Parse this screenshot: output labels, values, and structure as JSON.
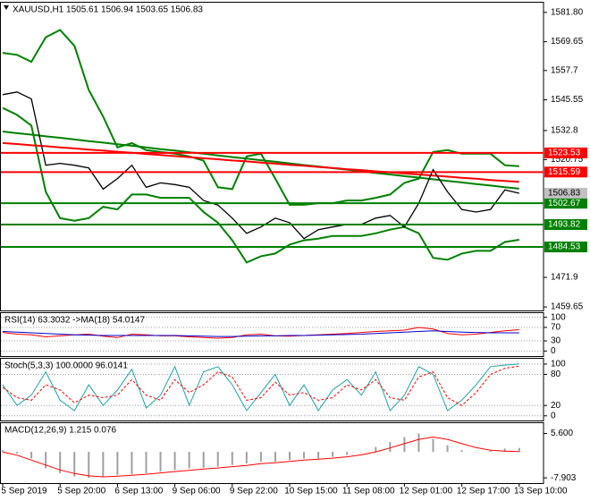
{
  "chart_data": [
    {
      "type": "line",
      "title": "XAUUSD,H1  1505.61 1506.94 1503.65 1506.83",
      "ylim": [
        1458.2,
        1586.2
      ],
      "yticks": [
        {
          "value": 1581.8,
          "label": "1581.80"
        },
        1569.65,
        1557.7,
        1545.55,
        1532.8,
        1520.75,
        1471.9,
        1459.65
      ],
      "grid": false,
      "levels": [
        {
          "value": 1523.53,
          "color": "#ff0000"
        },
        {
          "value": 1515.59,
          "color": "#ff0000"
        },
        {
          "value": 1502.67,
          "color": "#008000"
        },
        {
          "value": 1493.82,
          "color": "#008000"
        },
        {
          "value": 1484.53,
          "color": "#008000"
        }
      ],
      "last_price": 1506.83,
      "series": [
        {
          "color": "#008000",
          "width": 2,
          "values": [
            1565.0,
            1564.2,
            1561.3,
            1571.5,
            1574.5,
            1567.9,
            1549.6,
            1538.6,
            1525.8,
            1527.6,
            1524.7,
            1523.9,
            1523.2,
            1522.1,
            1520.3,
            1509.3,
            1508.5,
            1522.1,
            1523.2,
            1512.9,
            1502.0,
            1502.0,
            1502.7,
            1502.7,
            1503.8,
            1503.8,
            1504.9,
            1506.3,
            1511.1,
            1512.9,
            1523.9,
            1524.7,
            1523.2,
            1523.2,
            1523.2,
            1518.4,
            1518.0,
            null
          ]
        },
        {
          "color": "#008000",
          "width": 2,
          "values": [
            1542.2,
            1539.3,
            1534.9,
            1507.4,
            1496.5,
            1495.4,
            1496.5,
            1501.2,
            1500.1,
            1506.3,
            1506.3,
            1504.9,
            1504.9,
            1504.9,
            1499.0,
            1494.6,
            1487.3,
            1478.1,
            1480.7,
            1481.8,
            1485.5,
            1487.3,
            1488.0,
            1489.1,
            1489.1,
            1489.1,
            1490.2,
            1491.7,
            1492.8,
            1490.2,
            1480.0,
            1479.2,
            1481.8,
            1482.9,
            1482.9,
            1486.6,
            1487.5,
            null
          ]
        },
        {
          "color": "#008000",
          "width": 2,
          "values": [
            1532.4,
            1531.7,
            1531.1,
            1530.4,
            1529.8,
            1529.1,
            1528.4,
            1527.8,
            1527.1,
            1526.5,
            1525.8,
            1525.1,
            1524.5,
            1523.8,
            1523.2,
            1522.5,
            1521.8,
            1521.2,
            1520.5,
            1519.9,
            1519.2,
            1518.5,
            1517.9,
            1517.2,
            1516.6,
            1515.9,
            1515.2,
            1514.6,
            1513.9,
            1513.3,
            1512.6,
            1511.9,
            1511.3,
            1510.6,
            1510.0,
            1509.3,
            1508.7,
            null
          ]
        },
        {
          "color": "#ff0000",
          "width": 2,
          "values": [
            1527.6,
            1527.2,
            1526.7,
            1526.3,
            1525.8,
            1525.4,
            1524.9,
            1524.5,
            1524.0,
            1523.6,
            1523.1,
            1522.7,
            1522.2,
            1521.8,
            1521.3,
            1520.9,
            1520.4,
            1520.0,
            1519.5,
            1519.1,
            1518.6,
            1518.2,
            1517.7,
            1517.3,
            1516.8,
            1516.4,
            1515.9,
            1515.5,
            1515.0,
            1514.6,
            1514.1,
            1513.7,
            1513.2,
            1512.8,
            1512.3,
            1511.9,
            1511.5,
            null
          ]
        },
        {
          "color": "#000000",
          "width": 1.3,
          "values": [
            1547.7,
            1548.8,
            1545.9,
            1518.4,
            1519.2,
            1518.4,
            1517.3,
            1508.5,
            1512.9,
            1518.4,
            1509.3,
            1511.1,
            1510.4,
            1509.3,
            1503.8,
            1501.9,
            1496.5,
            1490.2,
            1492.8,
            1496.5,
            1494.6,
            1488.0,
            1491.7,
            1492.8,
            1493.9,
            1493.9,
            1496.5,
            1497.6,
            1492.8,
            1502.7,
            1516.6,
            1507.4,
            1500.1,
            1499.0,
            1500.1,
            1508.2,
            1506.8,
            null
          ]
        }
      ]
    },
    {
      "type": "line",
      "title": "RSI(14) 63.3032 ->MA(18) 54.0147",
      "ylim": [
        -15,
        115
      ],
      "yticks": [
        100,
        70,
        30,
        0
      ],
      "grid": true,
      "series": [
        {
          "color": "#ff0000",
          "width": 1,
          "values": [
            55,
            50,
            48,
            42,
            45,
            48,
            50,
            44,
            40,
            50,
            48,
            45,
            45,
            42,
            40,
            38,
            40,
            48,
            50,
            45,
            44,
            46,
            48,
            50,
            52,
            55,
            58,
            60,
            62,
            70,
            65,
            52,
            48,
            50,
            55,
            60,
            63.3,
            null
          ]
        },
        {
          "color": "#0000cc",
          "width": 1,
          "values": [
            58,
            56,
            54,
            52,
            50,
            48,
            47,
            46,
            46,
            46,
            46,
            46,
            46,
            45,
            44,
            43,
            43,
            44,
            45,
            45,
            46,
            46,
            47,
            48,
            49,
            50,
            52,
            54,
            56,
            58,
            60,
            58,
            56,
            55,
            54,
            54,
            54.0,
            null
          ]
        }
      ]
    },
    {
      "type": "line",
      "title": "Stoch(5,3,3) 100.0000 96.0141",
      "ylim": [
        -9,
        112
      ],
      "yticks": [
        100,
        80,
        20,
        0
      ],
      "grid": true,
      "series": [
        {
          "color": "#20a0a0",
          "width": 1,
          "values": [
            60,
            20,
            40,
            85,
            30,
            10,
            60,
            20,
            50,
            90,
            15,
            40,
            95,
            20,
            85,
            95,
            60,
            10,
            45,
            80,
            20,
            60,
            10,
            50,
            70,
            40,
            85,
            10,
            40,
            95,
            80,
            10,
            30,
            60,
            95,
            98,
            100,
            null
          ]
        },
        {
          "color": "#ff0000",
          "width": 1,
          "dash": true,
          "values": [
            55,
            35,
            30,
            60,
            50,
            25,
            40,
            35,
            40,
            70,
            40,
            30,
            70,
            45,
            60,
            85,
            75,
            30,
            35,
            65,
            40,
            45,
            30,
            35,
            60,
            50,
            70,
            35,
            30,
            75,
            85,
            35,
            20,
            45,
            80,
            92,
            96,
            null
          ]
        }
      ]
    },
    {
      "type": "bar",
      "title": "MACD(12,26,9) 1.215 0.076",
      "ylim": [
        -9.5,
        9
      ],
      "yticks": [
        {
          "value": 5.6,
          "label": "5.600"
        },
        {
          "value": -7.903,
          "label": "-7.903"
        }
      ],
      "grid": false,
      "categories": [
        "5 Sep 2019",
        null,
        null,
        null,
        "5 Sep 20:00",
        null,
        null,
        null,
        "6 Sep 13:00",
        null,
        null,
        null,
        "9 Sep 06:00",
        null,
        null,
        null,
        "9 Sep 22:00",
        null,
        null,
        null,
        "10 Sep 15:00",
        null,
        null,
        null,
        "11 Sep 08:00",
        null,
        null,
        null,
        "12 Sep 01:00",
        null,
        null,
        null,
        "12 Sep 17:00",
        null,
        null,
        null,
        "13 Sep 10:00",
        null
      ],
      "series": [
        {
          "type": "bar",
          "color": "#a0a0a0",
          "values": [
            0.5,
            -0.5,
            -2,
            -5,
            -6.5,
            -7.5,
            -7.9,
            -7.5,
            -7,
            -6.8,
            -6.5,
            -6,
            -5.5,
            -5,
            -4.8,
            -4.5,
            -4,
            -3.5,
            -3,
            -3,
            -2.5,
            -2,
            -2,
            -1.5,
            -1,
            0,
            1.5,
            3,
            4.5,
            5.6,
            4,
            2,
            0.5,
            0,
            0.3,
            1.0,
            1.2,
            null
          ]
        },
        {
          "type": "line",
          "color": "#ff0000",
          "width": 1,
          "values": [
            0,
            -1,
            -2.5,
            -4,
            -5.5,
            -6.6,
            -7.3,
            -7.6,
            -7.4,
            -7.1,
            -6.8,
            -6.4,
            -6,
            -5.6,
            -5.2,
            -4.9,
            -4.5,
            -4.1,
            -3.6,
            -3.3,
            -2.9,
            -2.5,
            -2.2,
            -1.9,
            -1.5,
            -0.9,
            0,
            1.2,
            2.5,
            3.8,
            4.5,
            3.8,
            2.5,
            1.3,
            0.5,
            0.2,
            0.1,
            null
          ]
        }
      ]
    }
  ]
}
